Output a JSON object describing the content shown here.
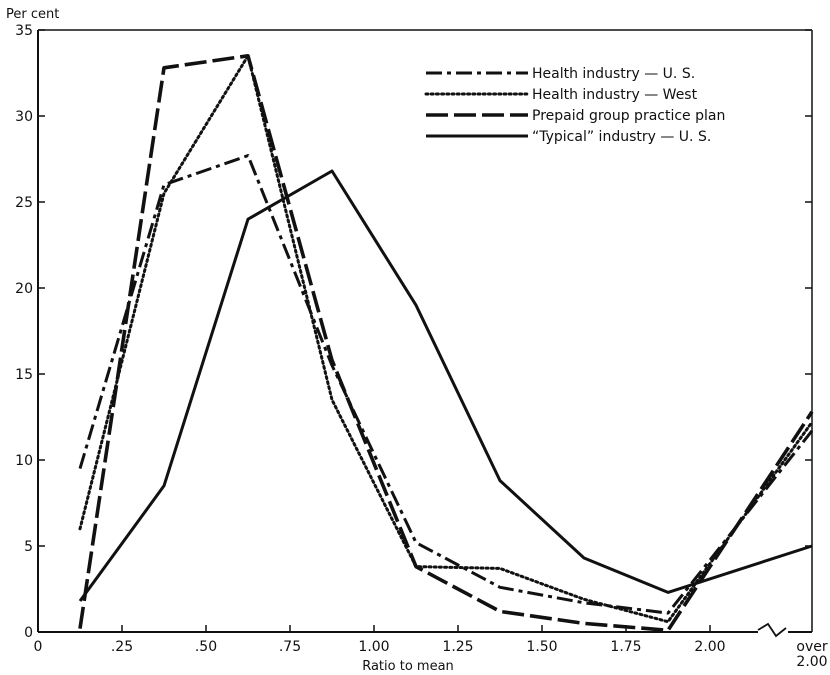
{
  "chart_data": {
    "type": "line",
    "ylabel": "Per cent",
    "xlabel": "Ratio to mean",
    "ylim": [
      0,
      35
    ],
    "xlim": [
      0,
      2.5
    ],
    "x_ticks": [
      "0",
      ".25",
      ".50",
      ".75",
      "1.00",
      "1.25",
      "1.50",
      "1.75",
      "2.00"
    ],
    "x_last_tick_label": [
      "over",
      "2.00"
    ],
    "y_ticks": [
      "0",
      "5",
      "10",
      "15",
      "20",
      "25",
      "30",
      "35"
    ],
    "x_axis_break": true,
    "grid": false,
    "legend_position": "top-right",
    "x": [
      0.125,
      0.375,
      0.625,
      0.875,
      1.125,
      1.375,
      1.625,
      1.875,
      "over 2.00"
    ],
    "series": [
      {
        "name": "Health industry — U. S.",
        "style": "dash-dot",
        "values": [
          9.5,
          26,
          27.7,
          15.5,
          5.2,
          2.6,
          1.7,
          1.1,
          11.7
        ]
      },
      {
        "name": "Health industry — West",
        "style": "dotted",
        "values": [
          6,
          25.5,
          33.5,
          13.5,
          3.8,
          3.7,
          1.9,
          0.6,
          12.2
        ]
      },
      {
        "name": "Prepaid group practice plan",
        "style": "long-dash",
        "values": [
          0.2,
          32.8,
          33.5,
          15.8,
          3.8,
          1.2,
          0.5,
          0.1,
          12.8
        ]
      },
      {
        "name": "“Typical” industry — U. S.",
        "style": "solid",
        "values": [
          1.8,
          8.5,
          24,
          26.8,
          19,
          8.8,
          4.3,
          2.3,
          5
        ]
      }
    ]
  }
}
